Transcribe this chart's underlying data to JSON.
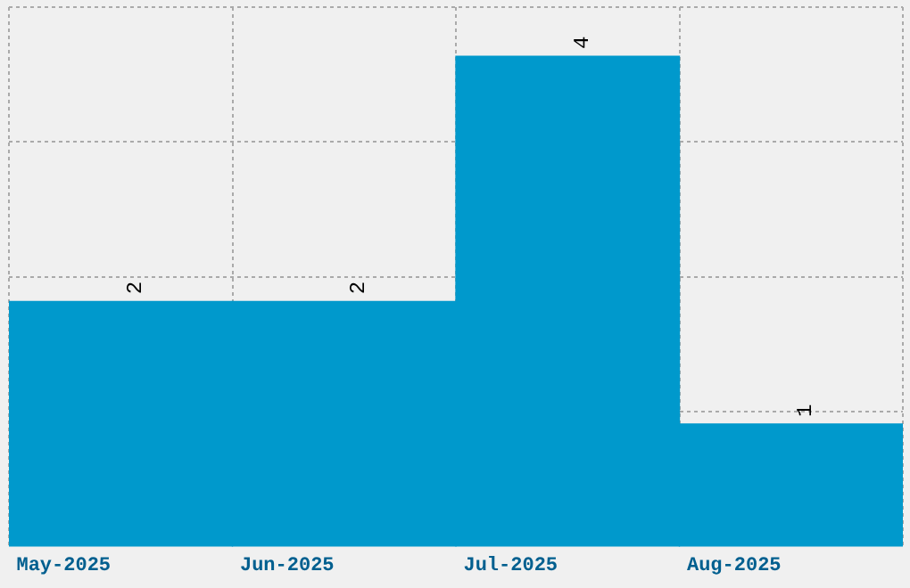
{
  "chart_data": {
    "type": "bar",
    "categories": [
      "May-2025",
      "Jun-2025",
      "Jul-2025",
      "Aug-2025"
    ],
    "values": [
      2,
      2,
      4,
      1
    ],
    "color": "#0099cc",
    "data_labels": true,
    "ylim": [
      0,
      4.4
    ],
    "yticks": [
      {
        "value": 1.1,
        "label": null
      },
      {
        "value": 2.2,
        "label": null
      },
      {
        "value": 3.3,
        "label": null
      },
      {
        "value": 4.4,
        "label": null
      }
    ],
    "grid": true,
    "legend": false,
    "tick_labels": "x"
  }
}
